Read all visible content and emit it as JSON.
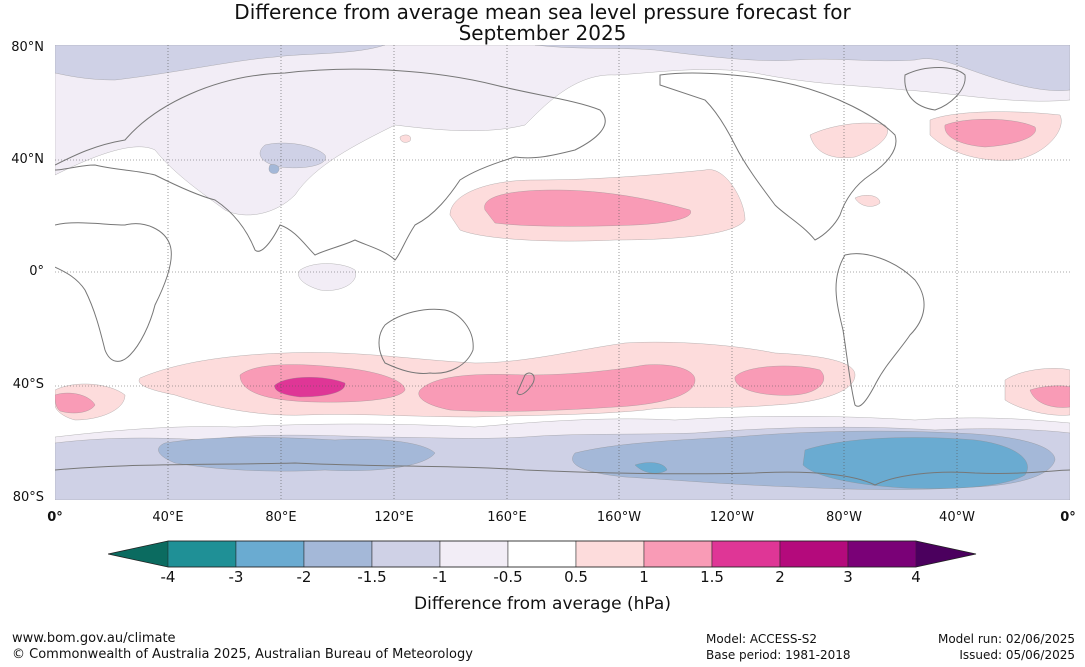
{
  "title": {
    "line1": "Difference from average mean sea level pressure forecast for",
    "line2": "September 2025"
  },
  "map": {
    "lat_labels": [
      "80°N",
      "40°N",
      "0°",
      "40°S",
      "80°S"
    ],
    "lon_labels": [
      "0°",
      "40°E",
      "80°E",
      "120°E",
      "160°E",
      "160°W",
      "120°W",
      "80°W",
      "40°W",
      "0°"
    ],
    "colors": {
      "le_-4": "#0b6b60",
      "-4_-3": "#1f9096",
      "-3_-2": "#6aabd1",
      "-2_-1.5": "#a4b8d8",
      "-1.5_-1": "#cfd1e6",
      "-1_-0.5": "#f2edf6",
      "-0.5_0.5": "#ffffff",
      "0.5_1": "#fddcdc",
      "1_1.5": "#f99bb6",
      "1.5_2": "#df3696",
      "2_3": "#b40a7c",
      "3_4": "#7a0177",
      "ge_4": "#4b005e"
    }
  },
  "colorbar": {
    "labels": [
      "-4",
      "-3",
      "-2",
      "-1.5",
      "-1",
      "-0.5",
      "0.5",
      "1",
      "1.5",
      "2",
      "3",
      "4"
    ],
    "title": "Difference from average (hPa)"
  },
  "footer": {
    "url": "www.bom.gov.au/climate",
    "copyright": "© Commonwealth of Australia 2025, Australian Bureau of Meteorology",
    "model": "Model: ACCESS-S2",
    "base_period": "Base period: 1981-2018",
    "model_run": "Model run: 02/06/2025",
    "issued": "Issued: 05/06/2025"
  }
}
